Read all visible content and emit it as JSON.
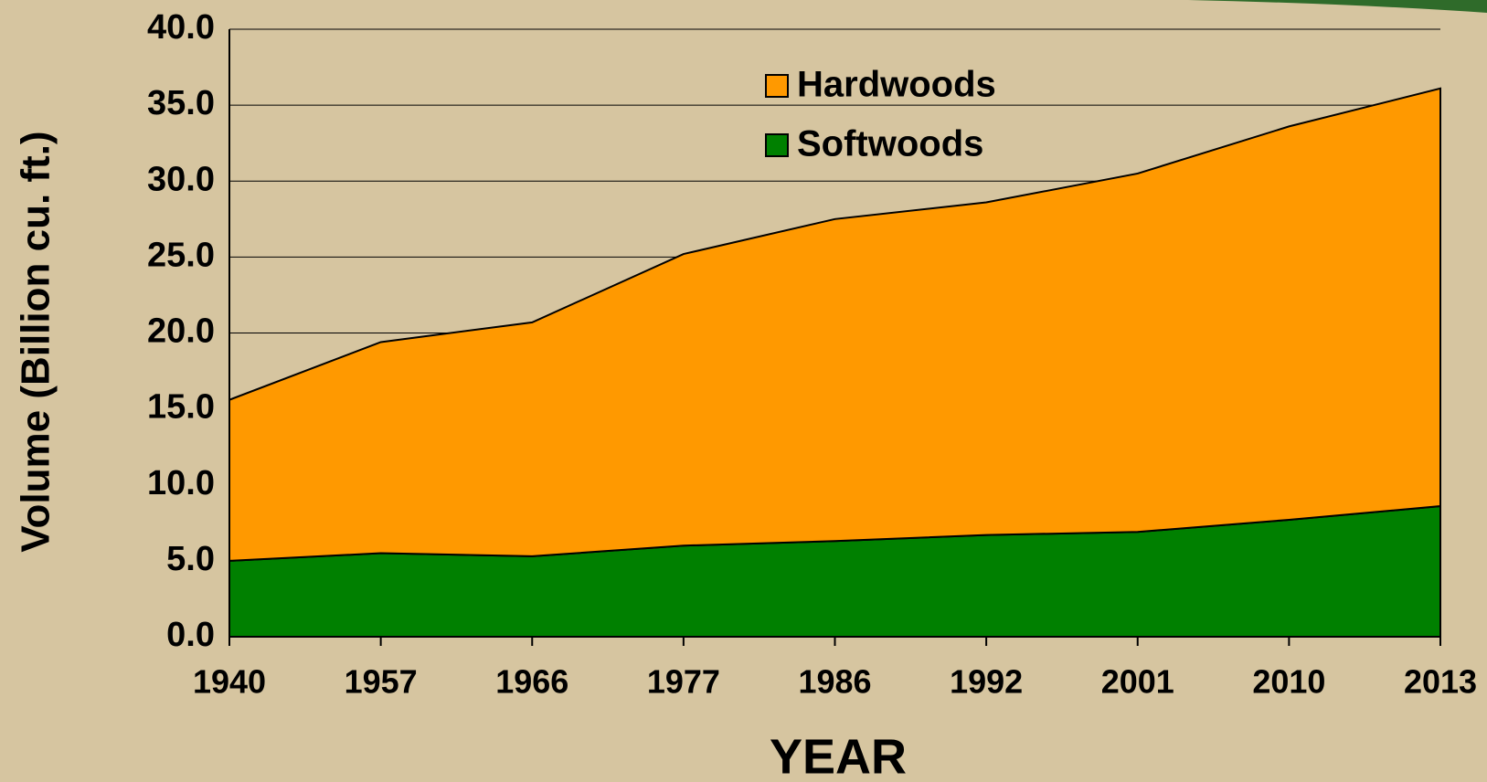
{
  "chart_data": {
    "type": "stacked_area",
    "y_label": "Volume (Billion cu. ft.)",
    "x_label": "YEAR",
    "categories": [
      "1940",
      "1957",
      "1966",
      "1977",
      "1986",
      "1992",
      "2001",
      "2010",
      "2013"
    ],
    "series": [
      {
        "name": "Softwoods",
        "color": "#008000",
        "values": [
          5.0,
          5.5,
          5.3,
          6.0,
          6.3,
          6.7,
          6.9,
          7.7,
          8.6
        ]
      },
      {
        "name": "Hardwoods",
        "color": "#ff9900",
        "values": [
          10.6,
          13.9,
          15.4,
          19.2,
          21.2,
          21.9,
          23.6,
          25.9,
          27.5
        ]
      }
    ],
    "ylim": [
      0,
      40
    ],
    "yticks": [
      {
        "value": 0,
        "label": "0.0"
      },
      {
        "value": 5,
        "label": "5.0"
      },
      {
        "value": 10,
        "label": "10.0"
      },
      {
        "value": 15,
        "label": "15.0"
      },
      {
        "value": 20,
        "label": "20.0"
      },
      {
        "value": 25,
        "label": "25.0"
      },
      {
        "value": 30,
        "label": "30.0"
      },
      {
        "value": 35,
        "label": "35.0"
      },
      {
        "value": 40,
        "label": "40.0"
      }
    ],
    "grid": true
  }
}
